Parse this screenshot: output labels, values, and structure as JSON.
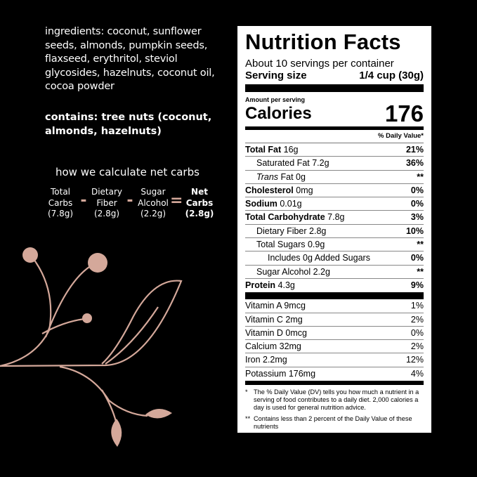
{
  "ingredients": "ingredients: coconut, sunflower seeds, almonds, pumpkin seeds, flaxseed, erythritol, steviol glycosides, hazelnuts, coconut oil, cocoa powder",
  "contains": "contains: tree nuts (coconut, almonds, hazelnuts)",
  "net_carbs": {
    "heading": "how we calculate net carbs",
    "terms": [
      {
        "l1": "Total",
        "l2": "Carbs",
        "v": "(7.8g)"
      },
      {
        "l1": "Dietary",
        "l2": "Fiber",
        "v": "(2.8g)"
      },
      {
        "l1": "Sugar",
        "l2": "Alcohol",
        "v": "(2.2g)"
      },
      {
        "l1": "Net",
        "l2": "Carbs",
        "v": "(2.8g)"
      }
    ],
    "minus": "-",
    "equals": "="
  },
  "accent": "#d4a89a",
  "label": {
    "title": "Nutrition Facts",
    "servings": "About 10 servings per container",
    "serving_size_label": "Serving size",
    "serving_size": "1/4 cup (30g)",
    "amount_per": "Amount per serving",
    "calories_label": "Calories",
    "calories": "176",
    "dv_header": "% Daily Value*",
    "rows": [
      {
        "b": "Total Fat",
        "a": " 16g",
        "p": "21%"
      },
      {
        "a": "Saturated Fat 7.2g",
        "p": "36%"
      },
      {
        "i": "Trans",
        "a": " Fat 0g",
        "p": "**"
      },
      {
        "b": "Cholesterol",
        "a": " 0mg",
        "p": "0%"
      },
      {
        "b": "Sodium",
        "a": " 0.01g",
        "p": "0%"
      },
      {
        "b": "Total Carbohydrate",
        "a": " 7.8g",
        "p": "3%"
      },
      {
        "a": "Dietary Fiber 2.8g",
        "p": "10%"
      },
      {
        "a": "Total Sugars 0.9g",
        "p": "**"
      },
      {
        "a": "Includes 0g Added Sugars",
        "p": "0%"
      },
      {
        "a": "Sugar Alcohol 2.2g",
        "p": "**"
      },
      {
        "b": "Protein",
        "a": " 4.3g",
        "p": "9%"
      }
    ],
    "vitamins": [
      {
        "a": "Vitamin A 9mcg",
        "p": "1%"
      },
      {
        "a": "Vitamin C 2mg",
        "p": "2%"
      },
      {
        "a": "Vitamin D 0mcg",
        "p": "0%"
      },
      {
        "a": "Calcium 32mg",
        "p": "2%"
      },
      {
        "a": "Iron 2.2mg",
        "p": "12%"
      },
      {
        "a": "Potassium 176mg",
        "p": "4%"
      }
    ],
    "foot1_mark": "*",
    "foot1": "The % Daily Value (DV) tells you how much a nutrient in a serving of food contributes to a daily diet. 2,000 calories a day is used for general nutrition advice.",
    "foot2_mark": "**",
    "foot2": "Contains less than 2 percent of the Daily Value of these nutrients"
  }
}
